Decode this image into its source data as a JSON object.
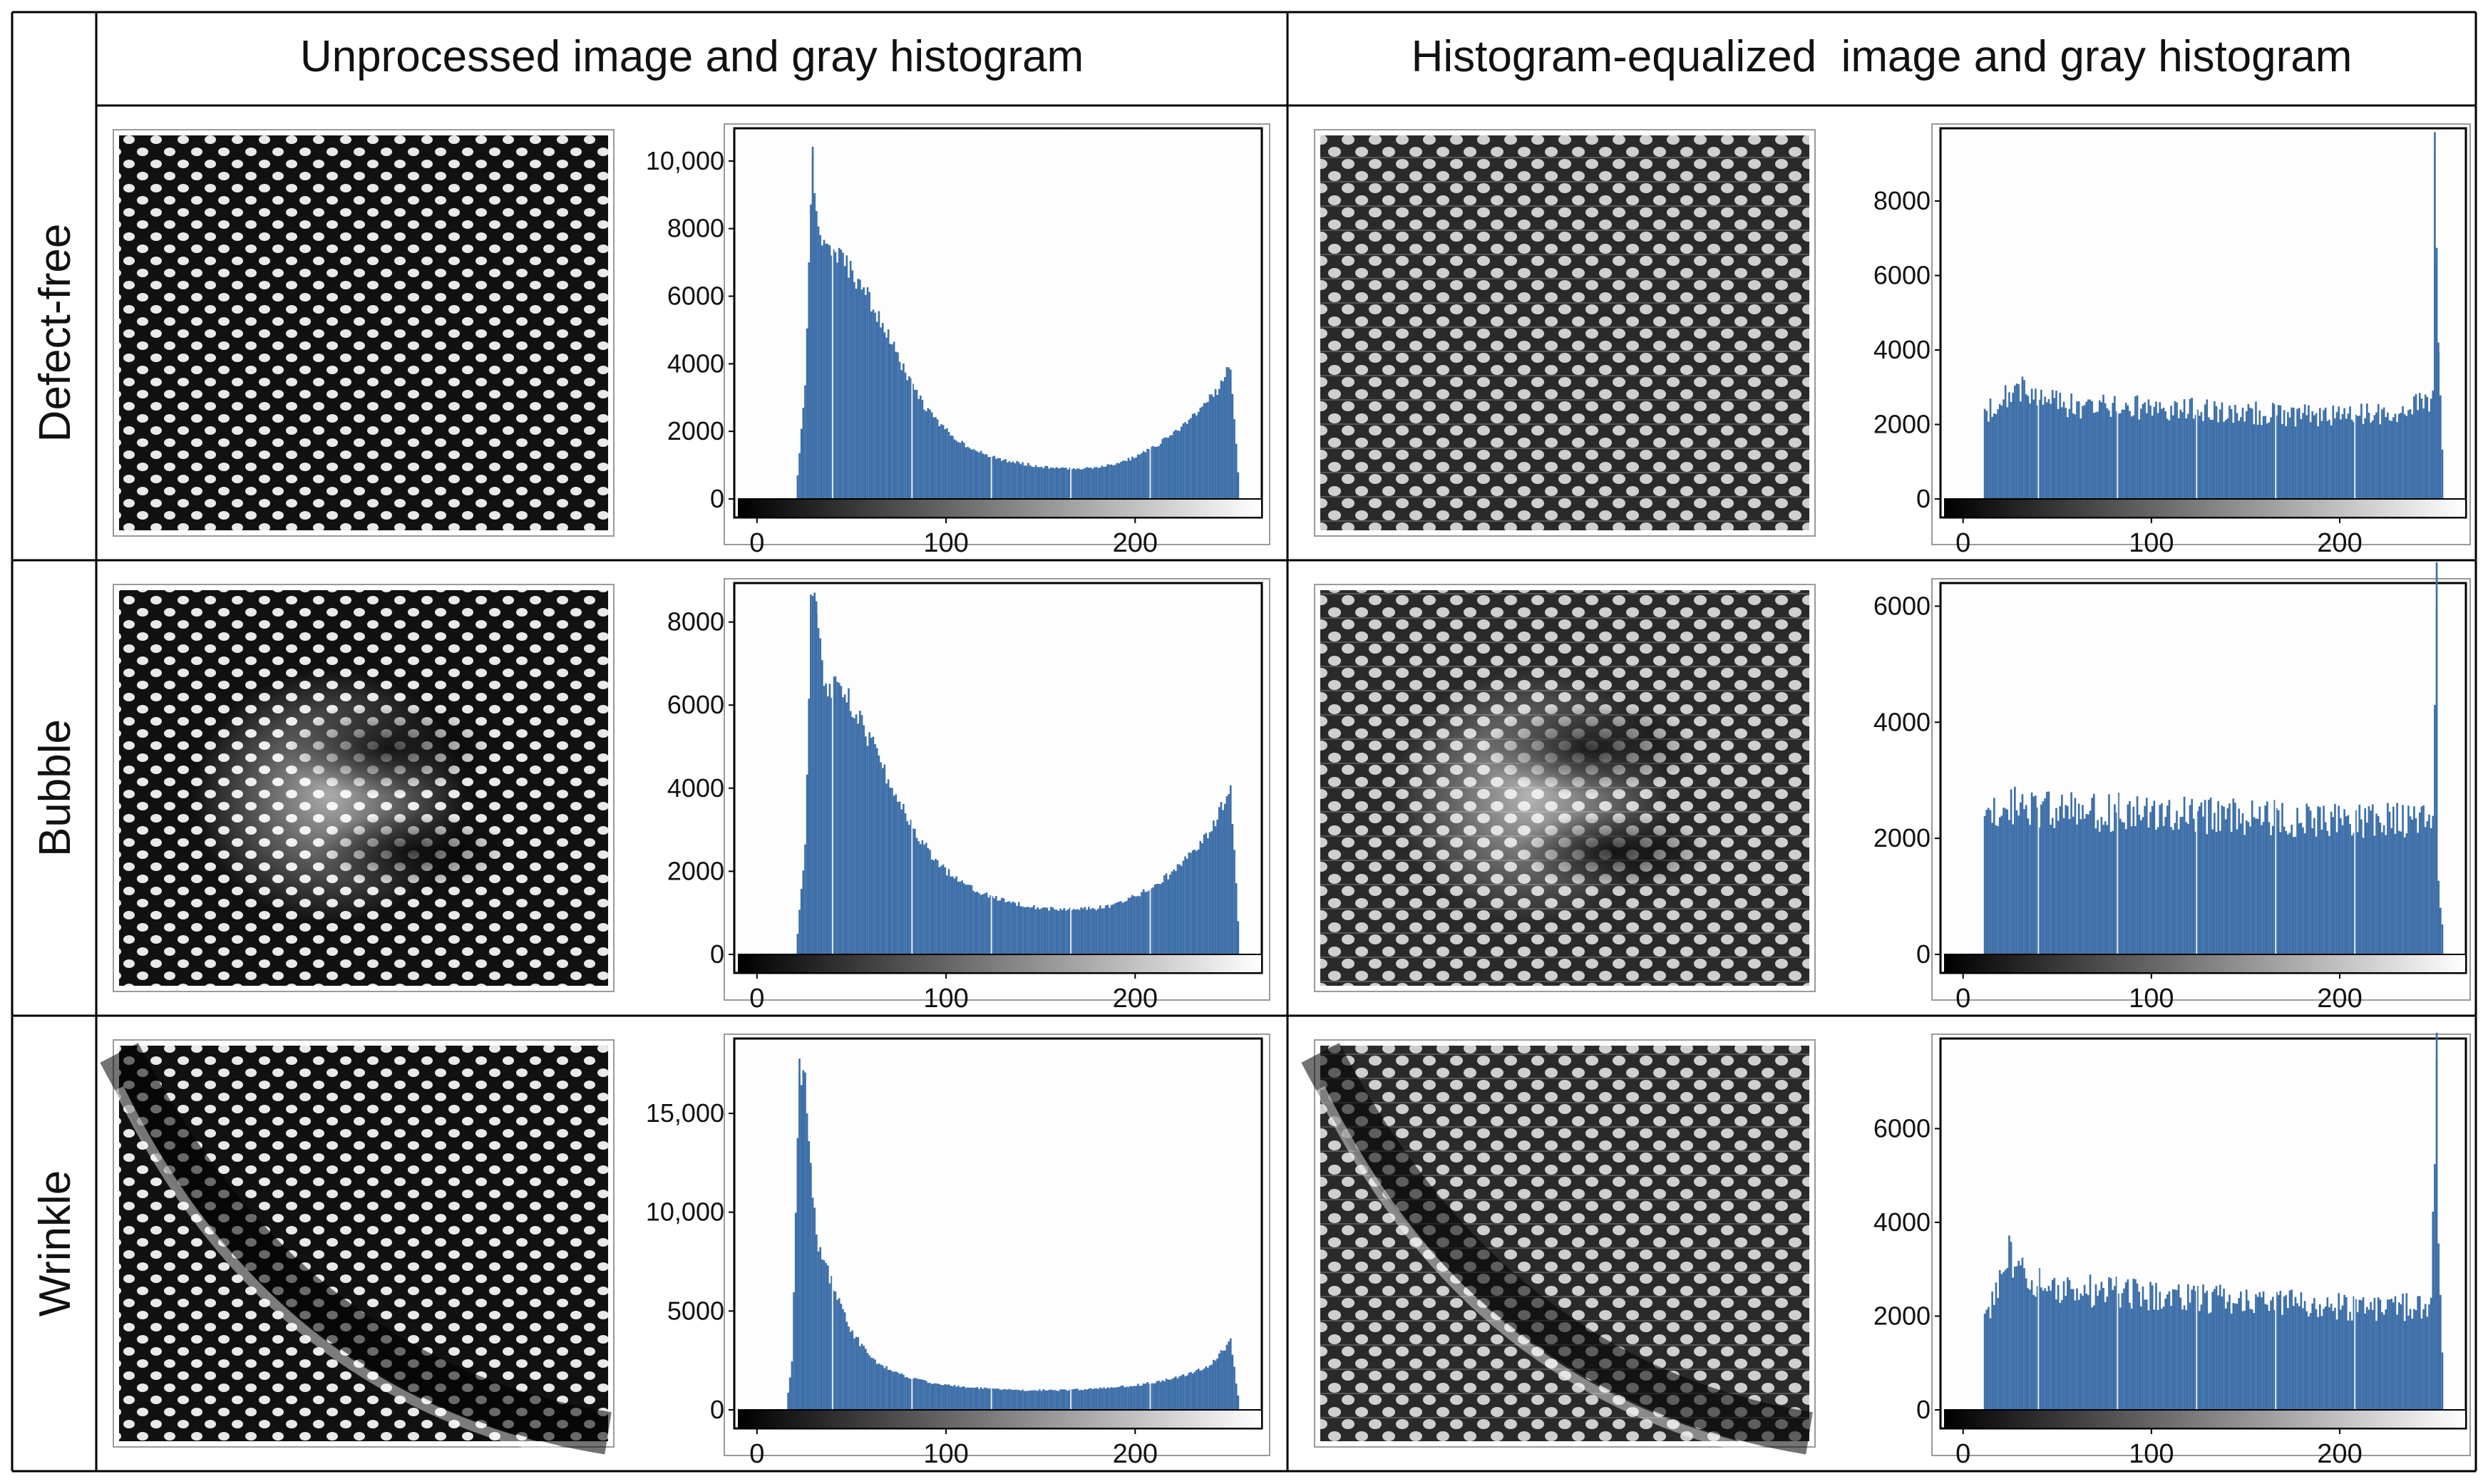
{
  "header": {
    "left": "Unprocessed image and gray histogram",
    "right": "Histogram-equalized  image and gray histogram"
  },
  "colors": {
    "bar": "#3d6fa8",
    "border": "#000000",
    "frame": "#9a9a9a",
    "text": "#111111"
  },
  "rows": [
    {
      "label": "Defect-free",
      "image_pattern": "regular-weave",
      "unprocessed": {
        "ylim": [
          0,
          10800
        ],
        "yticks": [
          0,
          2000,
          4000,
          6000,
          8000,
          10000
        ],
        "yticklabels": [
          "0",
          "2000",
          "4000",
          "6000",
          "8000",
          "10,000"
        ],
        "spikes": [
          [
            29,
            10200
          ]
        ]
      },
      "equalized": {
        "ylim": [
          0,
          9800
        ],
        "yticks": [
          0,
          2000,
          4000,
          6000,
          8000
        ],
        "yticklabels": [
          "0",
          "2000",
          "4000",
          "6000",
          "8000"
        ],
        "spikes": [
          [
            250,
            9300
          ],
          [
            251,
            6300
          ],
          [
            252,
            4200
          ]
        ]
      }
    },
    {
      "label": "Bubble",
      "image_pattern": "bubble-defect",
      "unprocessed": {
        "ylim": [
          0,
          8800
        ],
        "yticks": [
          0,
          2000,
          4000,
          6000,
          8000
        ],
        "yticklabels": [
          "0",
          "2000",
          "4000",
          "6000",
          "8000"
        ],
        "spikes": [
          [
            28,
            8300
          ],
          [
            31,
            8500
          ]
        ]
      },
      "equalized": {
        "ylim": [
          0,
          6300
        ],
        "yticks": [
          0,
          2000,
          4000,
          6000
        ],
        "yticklabels": [
          "0",
          "2000",
          "4000",
          "6000"
        ],
        "spikes": [
          [
            251,
            6000
          ]
        ]
      }
    },
    {
      "label": "Wrinkle",
      "image_pattern": "wrinkle-defect",
      "unprocessed": {
        "ylim": [
          0,
          18500
        ],
        "yticks": [
          0,
          5000,
          10000,
          15000
        ],
        "yticklabels": [
          "0",
          "5000",
          "10,000",
          "15,000"
        ],
        "spikes": [
          [
            22,
            17000
          ],
          [
            25,
            17000
          ],
          [
            28,
            12500
          ]
        ]
      },
      "equalized": {
        "ylim": [
          0,
          7800
        ],
        "yticks": [
          0,
          2000,
          4000,
          6000
        ],
        "yticklabels": [
          "0",
          "2000",
          "4000",
          "6000"
        ],
        "spikes": [
          [
            251,
            7500
          ],
          [
            252,
            3300
          ]
        ]
      }
    }
  ],
  "chart_data": [
    {
      "type": "bar",
      "id": "defect-free-unprocessed",
      "xticks": [
        0,
        100,
        200
      ],
      "xlim": [
        0,
        255
      ],
      "x": [
        0,
        20,
        25,
        29,
        32,
        40,
        50,
        60,
        70,
        80,
        90,
        100,
        110,
        120,
        130,
        140,
        150,
        160,
        170,
        180,
        190,
        200,
        210,
        220,
        230,
        240,
        245,
        250,
        255
      ],
      "values": [
        0,
        0,
        3500,
        10200,
        7800,
        7300,
        6700,
        5800,
        4700,
        3500,
        2600,
        2000,
        1600,
        1300,
        1150,
        1050,
        950,
        900,
        900,
        950,
        1050,
        1250,
        1550,
        1950,
        2450,
        3000,
        3400,
        4000,
        0
      ]
    },
    {
      "type": "bar",
      "id": "defect-free-equalized",
      "xticks": [
        0,
        100,
        200
      ],
      "xlim": [
        0,
        255
      ],
      "x": [
        0,
        10,
        11,
        20,
        30,
        40,
        60,
        80,
        100,
        120,
        140,
        160,
        180,
        200,
        220,
        240,
        249,
        250,
        252,
        255
      ],
      "values": [
        0,
        0,
        2300,
        2800,
        3000,
        2650,
        2500,
        2450,
        2450,
        2400,
        2350,
        2300,
        2250,
        2250,
        2250,
        2500,
        2700,
        9300,
        4200,
        0
      ]
    },
    {
      "type": "bar",
      "id": "bubble-unprocessed",
      "xticks": [
        0,
        100,
        200
      ],
      "xlim": [
        0,
        255
      ],
      "x": [
        0,
        20,
        25,
        28,
        31,
        35,
        40,
        50,
        60,
        70,
        80,
        90,
        100,
        110,
        120,
        130,
        140,
        150,
        160,
        170,
        180,
        190,
        200,
        210,
        220,
        230,
        240,
        248,
        250,
        255
      ],
      "values": [
        0,
        0,
        2600,
        8300,
        8500,
        6300,
        6500,
        6000,
        5100,
        4100,
        3200,
        2500,
        2000,
        1700,
        1450,
        1300,
        1200,
        1120,
        1080,
        1080,
        1120,
        1220,
        1400,
        1650,
        2000,
        2500,
        3000,
        3800,
        4100,
        0
      ]
    },
    {
      "type": "bar",
      "id": "bubble-equalized",
      "xticks": [
        0,
        100,
        200
      ],
      "xlim": [
        0,
        255
      ],
      "x": [
        0,
        10,
        11,
        20,
        40,
        60,
        80,
        100,
        120,
        140,
        160,
        180,
        200,
        220,
        240,
        249,
        251,
        252,
        255
      ],
      "values": [
        0,
        0,
        2400,
        2600,
        2500,
        2450,
        2450,
        2450,
        2400,
        2400,
        2350,
        2300,
        2300,
        2300,
        2350,
        2350,
        6000,
        1400,
        0
      ]
    },
    {
      "type": "bar",
      "id": "wrinkle-unprocessed",
      "xticks": [
        0,
        100,
        200
      ],
      "xlim": [
        0,
        255
      ],
      "x": [
        0,
        15,
        18,
        22,
        25,
        28,
        31,
        35,
        40,
        50,
        60,
        70,
        80,
        90,
        100,
        110,
        120,
        130,
        140,
        150,
        160,
        170,
        180,
        190,
        200,
        210,
        220,
        230,
        240,
        250,
        255
      ],
      "values": [
        0,
        0,
        2500,
        17000,
        17000,
        12500,
        8500,
        7500,
        6200,
        3900,
        2600,
        2000,
        1650,
        1400,
        1250,
        1150,
        1080,
        1030,
        1000,
        1000,
        1000,
        1030,
        1080,
        1150,
        1250,
        1400,
        1600,
        1900,
        2300,
        3500,
        0
      ]
    },
    {
      "type": "bar",
      "id": "wrinkle-equalized",
      "xticks": [
        0,
        100,
        200
      ],
      "xlim": [
        0,
        255
      ],
      "x": [
        0,
        10,
        11,
        15,
        20,
        23,
        30,
        40,
        60,
        80,
        100,
        120,
        140,
        160,
        180,
        200,
        220,
        240,
        248,
        251,
        252,
        255
      ],
      "values": [
        0,
        0,
        1800,
        2400,
        2900,
        3400,
        2900,
        2700,
        2550,
        2500,
        2450,
        2400,
        2350,
        2300,
        2250,
        2200,
        2200,
        2200,
        2250,
        7500,
        3300,
        0
      ]
    }
  ]
}
